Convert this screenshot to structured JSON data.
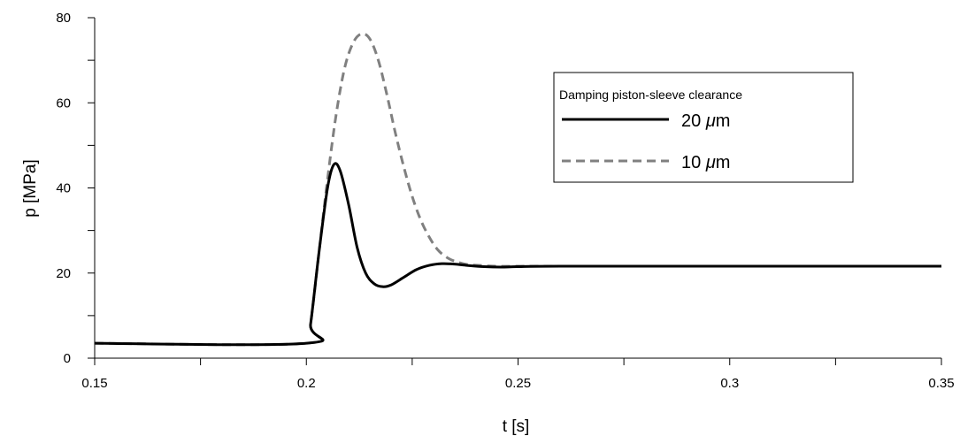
{
  "chart_data": {
    "type": "line",
    "xlabel": "t [s]",
    "ylabel": "p [MPa]",
    "xlim": [
      0.15,
      0.35
    ],
    "ylim": [
      0,
      80
    ],
    "x_ticks": [
      0.15,
      0.2,
      0.25,
      0.3,
      0.35
    ],
    "x_tick_labels": [
      "0.15",
      "0.2",
      "0.25",
      "0.3",
      "0.35"
    ],
    "y_ticks": [
      0,
      20,
      40,
      60,
      80
    ],
    "y_tick_labels": [
      "0",
      "20",
      "40",
      "60",
      "80"
    ],
    "grid": false,
    "legend": {
      "title": "Damping piston-sleeve clearance",
      "placement": "top-right"
    },
    "series": [
      {
        "name": "20 μm",
        "name_prefix": "20 ",
        "name_unit_symbol": "μ",
        "name_unit_rest": "m",
        "color": "#000000",
        "style": "solid",
        "x": [
          0.15,
          0.2,
          0.201,
          0.203,
          0.205,
          0.2065,
          0.208,
          0.21,
          0.212,
          0.214,
          0.216,
          0.218,
          0.22,
          0.223,
          0.226,
          0.229,
          0.232,
          0.235,
          0.238,
          0.242,
          0.246,
          0.25,
          0.26,
          0.3,
          0.35
        ],
        "y": [
          3.5,
          3.5,
          8,
          25,
          40,
          45.5,
          44,
          36,
          26,
          20,
          17.5,
          16.8,
          17.2,
          19,
          20.8,
          21.8,
          22.2,
          22.1,
          21.8,
          21.5,
          21.4,
          21.5,
          21.6,
          21.6,
          21.6
        ]
      },
      {
        "name": "10 μm",
        "name_prefix": "10 ",
        "name_unit_symbol": "μ",
        "name_unit_rest": "m",
        "color": "#808080",
        "style": "dashed",
        "x": [
          0.15,
          0.2,
          0.201,
          0.203,
          0.205,
          0.207,
          0.209,
          0.211,
          0.213,
          0.215,
          0.217,
          0.219,
          0.221,
          0.223,
          0.225,
          0.227,
          0.229,
          0.231,
          0.233,
          0.235,
          0.238,
          0.241,
          0.245,
          0.25,
          0.26,
          0.3,
          0.35
        ],
        "y": [
          3.5,
          3.5,
          8,
          25,
          42,
          57,
          68,
          74,
          76.2,
          75,
          70,
          62,
          53,
          45,
          38,
          32.5,
          28.5,
          25.5,
          23.8,
          22.8,
          22,
          21.8,
          21.6,
          21.6,
          21.6,
          21.6,
          21.6
        ]
      }
    ]
  }
}
